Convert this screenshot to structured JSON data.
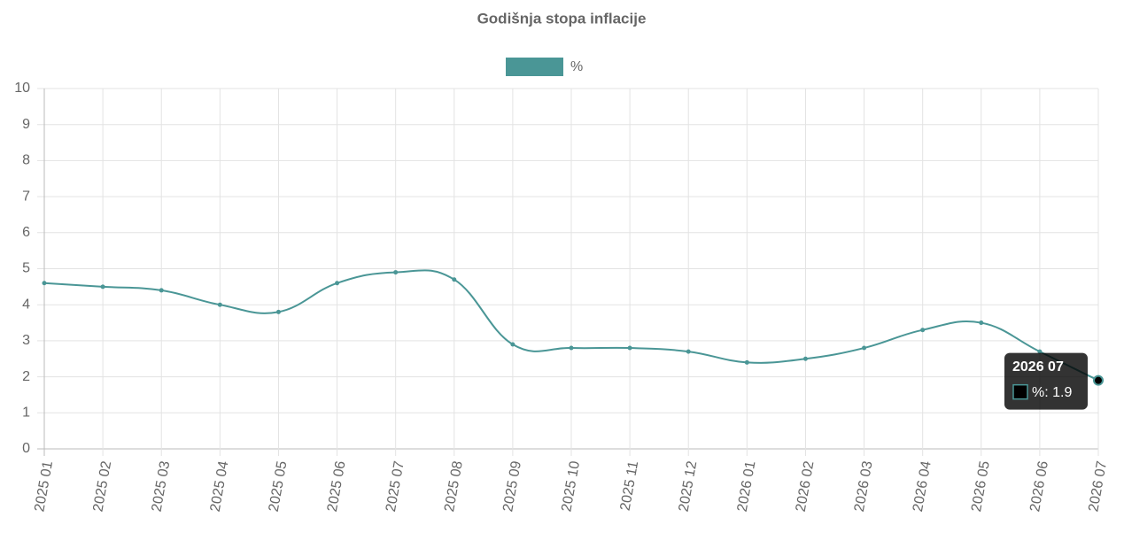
{
  "chart_data": {
    "type": "line",
    "title": "Godišnja stopa inflacije",
    "categories": [
      "2025 01",
      "2025 02",
      "2025 03",
      "2025 04",
      "2025 05",
      "2025 06",
      "2025 07",
      "2025 08",
      "2025 09",
      "2025 10",
      "2025 11",
      "2025 12",
      "2026 01",
      "2026 02",
      "2026 03",
      "2026 04",
      "2026 05",
      "2026 06",
      "2026 07"
    ],
    "series": [
      {
        "name": "%",
        "color": "#4a9696",
        "values": [
          4.6,
          4.5,
          4.4,
          4.0,
          3.8,
          4.6,
          4.9,
          4.7,
          2.9,
          2.8,
          2.8,
          2.7,
          2.4,
          2.5,
          2.8,
          3.3,
          3.5,
          2.7,
          1.9
        ]
      }
    ],
    "ylim": [
      0,
      10
    ],
    "yticks": [
      0,
      1,
      2,
      3,
      4,
      5,
      6,
      7,
      8,
      9,
      10
    ],
    "grid": true,
    "legend": "top",
    "tooltip": {
      "title": "2026 07",
      "label": "%: 1.9"
    }
  }
}
